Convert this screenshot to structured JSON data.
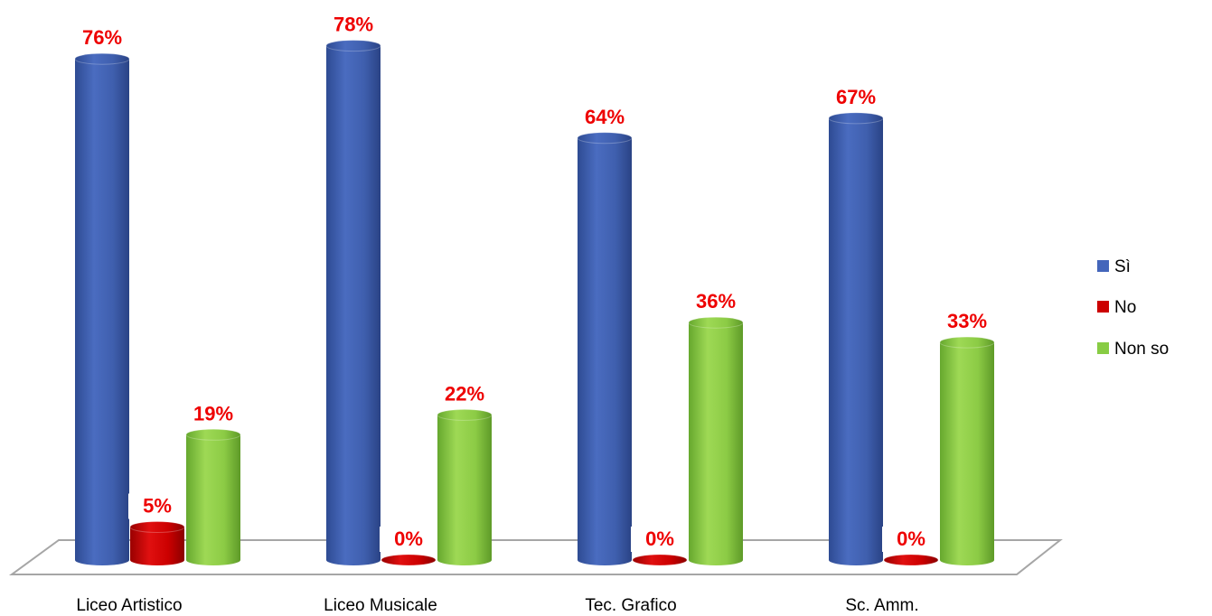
{
  "chart_data": {
    "type": "bar",
    "categories": [
      "Liceo Artistico",
      "Liceo Musicale",
      "Tec.  Grafico",
      "Sc. Amm."
    ],
    "series": [
      {
        "name": "Sì",
        "values": [
          76,
          78,
          64,
          67
        ],
        "labels": [
          "76%",
          "78%",
          "64%",
          "67%"
        ],
        "color": "#4466bb"
      },
      {
        "name": "No",
        "values": [
          5,
          0,
          0,
          0
        ],
        "labels": [
          "5%",
          "0%",
          "0%",
          "0%"
        ],
        "color": "#cc0000"
      },
      {
        "name": "Non so",
        "values": [
          19,
          22,
          36,
          33
        ],
        "labels": [
          "19%",
          "22%",
          "36%",
          "33%"
        ],
        "color": "#88cc44"
      }
    ],
    "ylim": [
      0,
      80
    ],
    "legend_position": "right",
    "grid": false
  }
}
